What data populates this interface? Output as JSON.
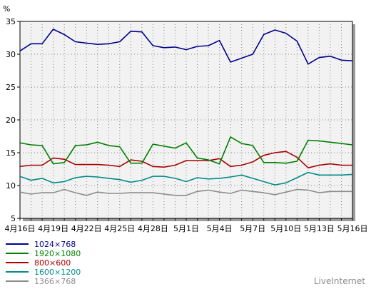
{
  "chart_data": {
    "type": "line",
    "ylabel": "%",
    "ylim": [
      5,
      35
    ],
    "yticks": [
      5,
      10,
      15,
      20,
      25,
      30,
      35
    ],
    "grid": true,
    "legend_position": "bottom-left",
    "credit": "LiveInternet",
    "x": [
      "4月16日",
      "4月17日",
      "4月18日",
      "4月19日",
      "4月20日",
      "4月21日",
      "4月22日",
      "4月23日",
      "4月24日",
      "4月25日",
      "4月26日",
      "4月27日",
      "4月28日",
      "4月29日",
      "4月30日",
      "5月1日",
      "5月2日",
      "5月3日",
      "5月4日",
      "5月5日",
      "5月6日",
      "5月7日",
      "5月8日",
      "5月9日",
      "5月10日",
      "5月11日",
      "5月12日",
      "5月13日",
      "5月14日",
      "5月15日",
      "5月16日"
    ],
    "x_tick_labels": [
      "4月16日",
      "4月19日",
      "4月22日",
      "4月25日",
      "4月28日",
      "5月1日",
      "5月4日",
      "5月7日",
      "5月10日",
      "5月13日",
      "5月16日"
    ],
    "series": [
      {
        "name": "1024×768",
        "color": "#00008b",
        "values": [
          30.5,
          31.6,
          31.6,
          33.8,
          33.0,
          31.9,
          31.7,
          31.5,
          31.6,
          31.9,
          33.5,
          33.4,
          31.3,
          31.0,
          31.1,
          30.7,
          31.2,
          31.3,
          32.1,
          28.8,
          29.4,
          30.0,
          33.0,
          33.7,
          33.2,
          32.0,
          28.5,
          29.5,
          29.7,
          29.1,
          29.0
        ]
      },
      {
        "name": "1920×1080",
        "color": "#008000",
        "values": [
          16.5,
          16.2,
          16.1,
          13.3,
          13.5,
          16.1,
          16.2,
          16.6,
          16.1,
          15.9,
          13.4,
          13.4,
          16.3,
          16.0,
          15.7,
          16.5,
          14.2,
          13.9,
          13.3,
          17.4,
          16.4,
          16.1,
          13.5,
          13.5,
          13.4,
          13.7,
          16.9,
          16.8,
          16.6,
          16.4,
          16.2
        ]
      },
      {
        "name": "800×600",
        "color": "#aa0000",
        "values": [
          12.9,
          13.1,
          13.1,
          14.2,
          14.0,
          13.2,
          13.2,
          13.2,
          13.1,
          12.9,
          13.9,
          13.7,
          12.9,
          12.8,
          13.1,
          13.8,
          13.8,
          13.8,
          14.1,
          12.9,
          13.1,
          13.6,
          14.6,
          15.0,
          15.2,
          14.3,
          12.7,
          13.1,
          13.3,
          13.1,
          13.1
        ]
      },
      {
        "name": "1600×1200",
        "color": "#008b8b",
        "values": [
          11.4,
          10.8,
          11.1,
          10.4,
          10.6,
          11.2,
          11.4,
          11.3,
          11.1,
          10.9,
          10.5,
          10.8,
          11.4,
          11.4,
          11.1,
          10.6,
          11.2,
          11.0,
          11.1,
          11.3,
          11.6,
          11.1,
          10.6,
          10.1,
          10.4,
          11.2,
          12.0,
          11.6,
          11.6,
          11.6,
          11.7
        ]
      },
      {
        "name": "1366×768",
        "color": "#8c8c8c",
        "values": [
          9.0,
          8.7,
          8.9,
          8.9,
          9.4,
          8.9,
          8.5,
          9.0,
          8.8,
          8.8,
          8.9,
          8.9,
          8.9,
          8.7,
          8.5,
          8.5,
          9.1,
          9.3,
          9.0,
          8.8,
          9.3,
          9.1,
          8.9,
          8.6,
          9.0,
          9.4,
          9.3,
          8.9,
          9.1,
          9.1,
          9.1
        ]
      }
    ]
  }
}
